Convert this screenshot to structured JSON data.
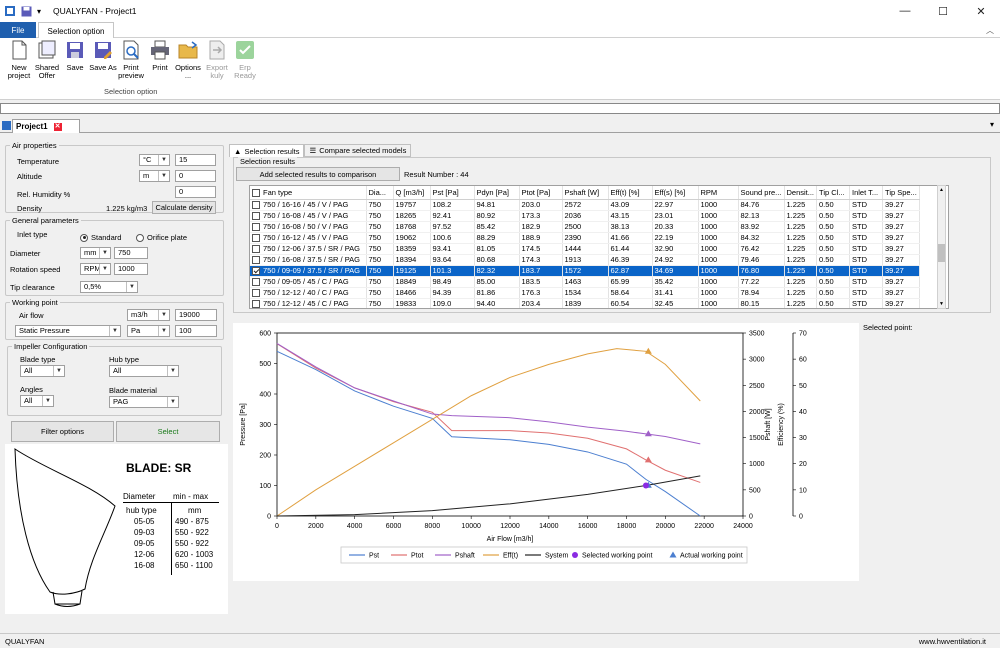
{
  "window": {
    "title": "QUALYFAN - Project1"
  },
  "ribbon": {
    "file_tab": "File",
    "active_tab": "Selection option",
    "buttons": [
      {
        "label": "New project",
        "icon": "new-document-icon",
        "enabled": true
      },
      {
        "label": "Shared Offer",
        "icon": "shared-offer-icon",
        "enabled": true
      },
      {
        "label": "Save",
        "icon": "save-icon",
        "enabled": true
      },
      {
        "label": "Save As",
        "icon": "save-as-icon",
        "enabled": true
      },
      {
        "label": "Print preview",
        "icon": "print-preview-icon",
        "enabled": true
      },
      {
        "label": "Print",
        "icon": "print-icon",
        "enabled": true
      },
      {
        "label": "Options ...",
        "icon": "options-icon",
        "enabled": true
      },
      {
        "label": "Export kuly",
        "icon": "export-icon",
        "enabled": false
      },
      {
        "label": "Erp Ready",
        "icon": "erp-icon",
        "enabled": false
      }
    ],
    "group_label": "Selection option"
  },
  "document_tab": "Project1",
  "left": {
    "air_properties": {
      "legend": "Air properties",
      "temperature": {
        "label": "Temperature",
        "unit": "°C",
        "value": "15"
      },
      "altitude": {
        "label": "Altitude",
        "unit": "m",
        "value": "0"
      },
      "humidity": {
        "label": "Rel. Humidity %",
        "value": "0"
      },
      "density": {
        "label": "Density",
        "value": "1.225 kg/m3",
        "button": "Calculate density"
      }
    },
    "general": {
      "legend": "General parameters",
      "inlet_type": {
        "label": "Inlet type",
        "options": [
          "Standard",
          "Orifice plate"
        ],
        "selected": "Standard"
      },
      "diameter": {
        "label": "Diameter",
        "unit": "mm",
        "value": "750"
      },
      "rotation": {
        "label": "Rotation speed",
        "unit": "RPM",
        "value": "1000"
      },
      "tip": {
        "label": "Tip clearance",
        "value": "0,5%"
      }
    },
    "working_point": {
      "legend": "Working point",
      "airflow": {
        "label": "Air flow",
        "unit": "m3/h",
        "value": "19000"
      },
      "pressure": {
        "type": "Static Pressure",
        "unit": "Pa",
        "value": "100"
      }
    },
    "impeller": {
      "legend": "Impeller Configuration",
      "blade_type": {
        "label": "Blade type",
        "value": "All"
      },
      "hub_type": {
        "label": "Hub type",
        "value": "All"
      },
      "angles": {
        "label": "Angles",
        "value": "All"
      },
      "blade_material": {
        "label": "Blade material",
        "value": "PAG"
      }
    },
    "buttons": {
      "filter": "Filter options",
      "select": "Select"
    },
    "blade_info": {
      "title": "BLADE: SR",
      "h1": "Diameter",
      "h2": "min - max",
      "h3": "hub type",
      "h4": "mm",
      "rows": [
        [
          "05-05",
          "490 - 875"
        ],
        [
          "09-03",
          "550 - 922"
        ],
        [
          "09-05",
          "550 - 922"
        ],
        [
          "12-06",
          "620 - 1003"
        ],
        [
          "16-08",
          "650 - 1100"
        ]
      ]
    }
  },
  "right": {
    "tabs": [
      "Selection results",
      "Compare selected models"
    ],
    "group_label": "Selection results",
    "add_button": "Add selected results to comparison",
    "result_label": "Result Number : 44",
    "columns": [
      "Fan type",
      "Dia...",
      "Q [m3/h]",
      "Pst [Pa]",
      "Pdyn [Pa]",
      "Ptot [Pa]",
      "Pshaft [W]",
      "Eff(t) [%]",
      "Eff(s) [%]",
      "RPM",
      "Sound pre...",
      "Densit...",
      "Tip Cl...",
      "Inlet T...",
      "Tip Spe..."
    ],
    "rows": [
      [
        "750 / 16-16 / 45 / V / PAG",
        "750",
        "19757",
        "108.2",
        "94.81",
        "203.0",
        "2572",
        "43.09",
        "22.97",
        "1000",
        "84.76",
        "1.225",
        "0.50",
        "STD",
        "39.27"
      ],
      [
        "750 / 16-08 / 45 / V / PAG",
        "750",
        "18265",
        "92.41",
        "80.92",
        "173.3",
        "2036",
        "43.15",
        "23.01",
        "1000",
        "82.13",
        "1.225",
        "0.50",
        "STD",
        "39.27"
      ],
      [
        "750 / 16-08 / 50 / V / PAG",
        "750",
        "18768",
        "97.52",
        "85.42",
        "182.9",
        "2500",
        "38.13",
        "20.33",
        "1000",
        "83.92",
        "1.225",
        "0.50",
        "STD",
        "39.27"
      ],
      [
        "750 / 16-12 / 45 / V / PAG",
        "750",
        "19062",
        "100.6",
        "88.29",
        "188.9",
        "2390",
        "41.66",
        "22.19",
        "1000",
        "84.32",
        "1.225",
        "0.50",
        "STD",
        "39.27"
      ],
      [
        "750 / 12-06 / 37.5 / SR / PAG",
        "750",
        "18359",
        "93.41",
        "81.05",
        "174.5",
        "1444",
        "61.44",
        "32.90",
        "1000",
        "76.42",
        "1.225",
        "0.50",
        "STD",
        "39.27"
      ],
      [
        "750 / 16-08 / 37.5 / SR / PAG",
        "750",
        "18394",
        "93.64",
        "80.68",
        "174.3",
        "1913",
        "46.39",
        "24.92",
        "1000",
        "79.46",
        "1.225",
        "0.50",
        "STD",
        "39.27"
      ],
      [
        "750 / 09-09 / 37.5 / SR / PAG",
        "750",
        "19125",
        "101.3",
        "82.32",
        "183.7",
        "1572",
        "62.87",
        "34.69",
        "1000",
        "76.80",
        "1.225",
        "0.50",
        "STD",
        "39.27"
      ],
      [
        "750 / 09-05 / 45 / C / PAG",
        "750",
        "18849",
        "98.49",
        "85.00",
        "183.5",
        "1463",
        "65.99",
        "35.42",
        "1000",
        "77.22",
        "1.225",
        "0.50",
        "STD",
        "39.27"
      ],
      [
        "750 / 12-12 / 40 / C / PAG",
        "750",
        "18466",
        "94.39",
        "81.86",
        "176.3",
        "1534",
        "58.64",
        "31.41",
        "1000",
        "78.94",
        "1.225",
        "0.50",
        "STD",
        "39.27"
      ],
      [
        "750 / 12-12 / 45 / C / PAG",
        "750",
        "19833",
        "109.0",
        "94.40",
        "203.4",
        "1839",
        "60.54",
        "32.45",
        "1000",
        "80.15",
        "1.225",
        "0.50",
        "STD",
        "39.27"
      ]
    ],
    "selected_row": 6,
    "selected_point_label": "Selected point:"
  },
  "chart_data": {
    "type": "line",
    "xlabel": "Air Flow [m3/h]",
    "ylabel": "Pressure [Pa]",
    "y2label": "Pshaft [W]",
    "y3label": "Efficiency (%)",
    "xlim": [
      0,
      24000
    ],
    "xticks": [
      0,
      2000,
      4000,
      6000,
      8000,
      10000,
      12000,
      14000,
      16000,
      18000,
      20000,
      22000,
      24000
    ],
    "ylim": [
      0,
      600
    ],
    "yticks": [
      0,
      100,
      200,
      300,
      400,
      500,
      600
    ],
    "y2lim": [
      0,
      3500
    ],
    "y2ticks": [
      0,
      500,
      1000,
      1500,
      2000,
      2500,
      3000,
      3500
    ],
    "y3lim": [
      0,
      70
    ],
    "y3ticks": [
      0,
      10,
      20,
      30,
      40,
      50,
      60,
      70
    ],
    "series": [
      {
        "name": "Pst",
        "color": "#4c7fd0",
        "axis": "y",
        "x": [
          0,
          2000,
          4000,
          6000,
          8000,
          9000,
          12000,
          14000,
          16000,
          18000,
          19000,
          20000,
          21800
        ],
        "y": [
          540,
          480,
          410,
          360,
          320,
          260,
          250,
          235,
          210,
          170,
          120,
          80,
          0
        ]
      },
      {
        "name": "Ptot",
        "color": "#e07070",
        "axis": "y",
        "x": [
          0,
          2000,
          4000,
          6000,
          8000,
          9000,
          12000,
          14000,
          16000,
          18000,
          19000,
          20000,
          21800
        ],
        "y": [
          565,
          485,
          420,
          375,
          340,
          280,
          280,
          272,
          255,
          220,
          184,
          150,
          110
        ]
      },
      {
        "name": "Pshaft",
        "color": "#a060c8",
        "axis": "y2",
        "x": [
          0,
          2000,
          4000,
          6000,
          8000,
          9000,
          12000,
          14000,
          16000,
          18000,
          19000,
          20000,
          21800
        ],
        "y": [
          3300,
          2850,
          2450,
          2200,
          1950,
          1920,
          1880,
          1800,
          1700,
          1620,
          1570,
          1520,
          1380
        ]
      },
      {
        "name": "Eff(t)",
        "color": "#e0a040",
        "axis": "y3",
        "x": [
          0,
          2000,
          4000,
          6000,
          8000,
          10000,
          12000,
          14000,
          16000,
          17500,
          19000,
          20000,
          21800
        ],
        "y": [
          0,
          10,
          19,
          28,
          37,
          46,
          53,
          58,
          62,
          64,
          63,
          58,
          44
        ]
      },
      {
        "name": "System",
        "color": "#222222",
        "axis": "y",
        "x": [
          0,
          4000,
          8000,
          12000,
          16000,
          19000,
          21800
        ],
        "y": [
          0,
          4.4,
          17.7,
          39.9,
          70.9,
          100,
          131.6
        ]
      }
    ],
    "markers": [
      {
        "name": "Selected working point",
        "color": "#8a2be2",
        "shape": "circle"
      },
      {
        "name": "Actual working point",
        "color": "#4c7fd0",
        "shape": "triangle"
      }
    ],
    "selected_working_point": {
      "x": 19000,
      "y": 100
    },
    "actual_working_points": [
      {
        "series": "Pst",
        "x": 19125,
        "y": 101
      },
      {
        "series": "Ptot",
        "x": 19125,
        "y": 184
      },
      {
        "series": "Pshaft",
        "x": 19125,
        "y": 1572
      },
      {
        "series": "Eff(t)",
        "x": 19125,
        "y": 63
      }
    ],
    "legend": [
      "Pst",
      "Ptot",
      "Pshaft",
      "Eff(t)",
      "System",
      "Selected working point",
      "Actual working point"
    ],
    "legend_position": "bottom",
    "grid": false
  },
  "status": {
    "left": "QUALYFAN",
    "right": "www.hwventilation.it"
  }
}
